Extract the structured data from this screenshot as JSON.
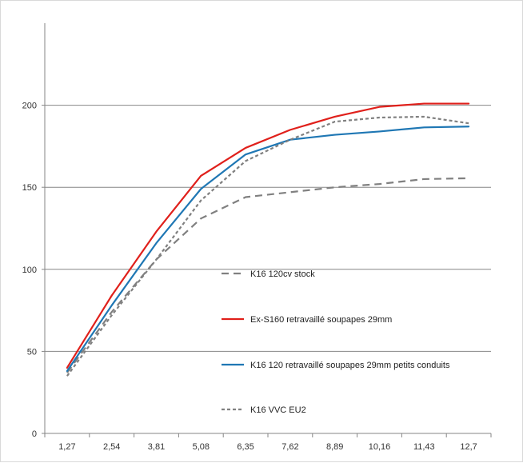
{
  "chart_data": {
    "type": "line",
    "title": "",
    "xlabel": "",
    "ylabel": "",
    "categories": [
      "1,27",
      "2,54",
      "3,81",
      "5,08",
      "6,35",
      "7,62",
      "8,89",
      "10,16",
      "11,43",
      "12,7"
    ],
    "yticks": [
      "0",
      "50",
      "100",
      "150",
      "200"
    ],
    "ylim": [
      0,
      250
    ],
    "grid": "horizontal",
    "legend": "inside, center-right",
    "series": [
      {
        "name": "K16 120cv stock",
        "color": "#808080",
        "dash": "long-dash",
        "values": [
          37,
          74,
          106,
          131,
          144,
          147,
          150,
          152,
          155,
          155.5
        ]
      },
      {
        "name": "Ex-S160 retravaillé soupapes 29mm",
        "color": "#e0201b",
        "dash": "solid",
        "values": [
          40,
          84,
          123,
          157,
          174,
          185,
          193,
          199,
          201,
          201
        ]
      },
      {
        "name": "K16 120 retravaillé soupapes 29mm petits conduits",
        "color": "#1f77b4",
        "dash": "solid",
        "values": [
          38,
          78,
          116,
          149,
          170,
          179,
          182,
          184,
          186.5,
          187
        ]
      },
      {
        "name": "K16 VVC EU2",
        "color": "#808080",
        "dash": "short-dash",
        "values": [
          35,
          72,
          106,
          142,
          166,
          179,
          190,
          192.5,
          193,
          189
        ]
      }
    ]
  }
}
